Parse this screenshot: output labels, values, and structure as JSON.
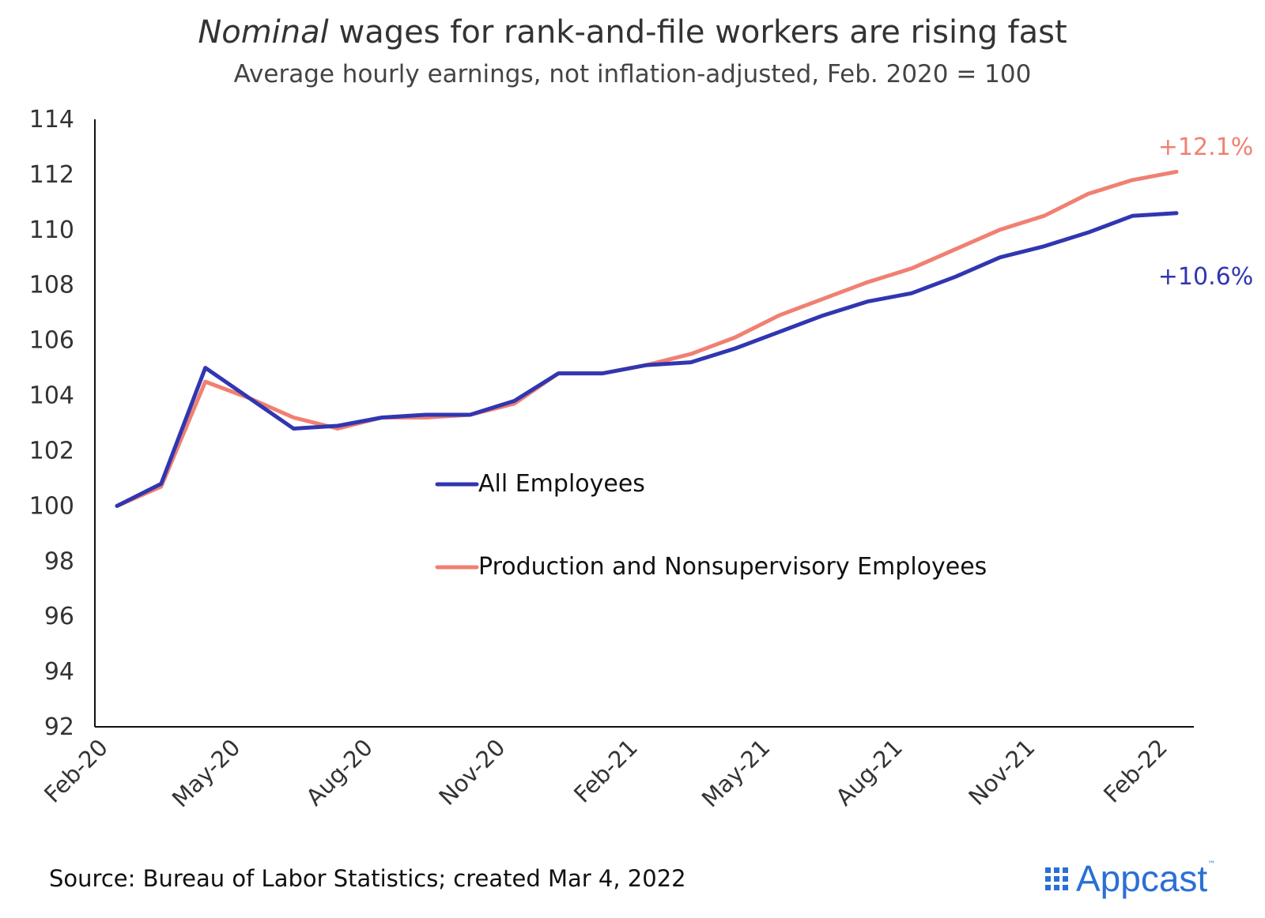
{
  "title_emph": "Nominal",
  "title_rest": "wages for rank-and-file workers are rising fast",
  "subtitle": "Average hourly earnings, not inflation-adjusted, Feb. 2020 = 100",
  "source": "Source: Bureau of Labor Statistics; created Mar 4, 2022",
  "logo": {
    "text": "Appcast",
    "tm": "™"
  },
  "colors": {
    "all": "#3136b0",
    "production": "#f08072",
    "axis": "#111111"
  },
  "chart_data": {
    "type": "line",
    "title": "Nominal wages for rank-and-file workers are rising fast",
    "subtitle": "Average hourly earnings, not inflation-adjusted, Feb. 2020 = 100",
    "xlabel": "",
    "ylabel": "",
    "ylim": [
      92,
      114
    ],
    "yticks": [
      114,
      112,
      110,
      108,
      106,
      104,
      102,
      100,
      98,
      96,
      94,
      92
    ],
    "xtick_labels": [
      "Feb-20",
      "May-20",
      "Aug-20",
      "Nov-20",
      "Feb-21",
      "May-21",
      "Aug-21",
      "Nov-21",
      "Feb-22"
    ],
    "xtick_positions": [
      0,
      3,
      6,
      9,
      12,
      15,
      18,
      21,
      24
    ],
    "x": [
      "Feb-20",
      "Mar-20",
      "Apr-20",
      "May-20",
      "Jun-20",
      "Jul-20",
      "Aug-20",
      "Sep-20",
      "Oct-20",
      "Nov-20",
      "Dec-20",
      "Jan-21",
      "Feb-21",
      "Mar-21",
      "Apr-21",
      "May-21",
      "Jun-21",
      "Jul-21",
      "Aug-21",
      "Sep-21",
      "Oct-21",
      "Nov-21",
      "Dec-21",
      "Jan-22",
      "Feb-22"
    ],
    "grid": false,
    "legend": "center",
    "series": [
      {
        "name": "All Employees",
        "color": "#3136b0",
        "values": [
          100,
          100.8,
          105.0,
          103.9,
          102.8,
          102.9,
          103.2,
          103.3,
          103.3,
          103.8,
          104.8,
          104.8,
          105.1,
          105.2,
          105.7,
          106.3,
          106.9,
          107.4,
          107.7,
          108.3,
          109.0,
          109.4,
          109.9,
          110.5,
          110.6
        ],
        "end_label": "+10.6%"
      },
      {
        "name": "Production and Nonsupervisory Employees",
        "color": "#f08072",
        "values": [
          100,
          100.7,
          104.5,
          103.9,
          103.2,
          102.8,
          103.2,
          103.2,
          103.3,
          103.7,
          104.8,
          104.8,
          105.1,
          105.5,
          106.1,
          106.9,
          107.5,
          108.1,
          108.6,
          109.3,
          110.0,
          110.5,
          111.3,
          111.8,
          112.1
        ],
        "end_label": "+12.1%"
      }
    ]
  }
}
